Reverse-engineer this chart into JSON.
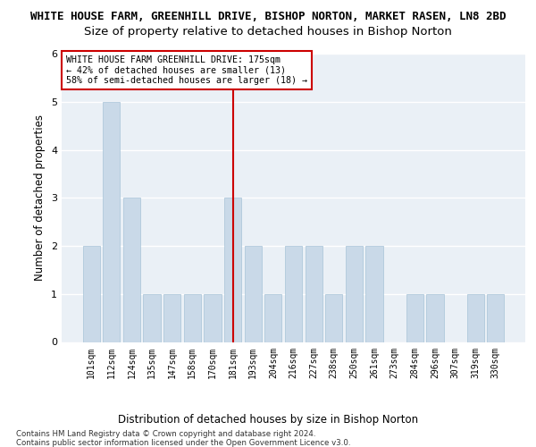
{
  "title": "WHITE HOUSE FARM, GREENHILL DRIVE, BISHOP NORTON, MARKET RASEN, LN8 2BD",
  "subtitle": "Size of property relative to detached houses in Bishop Norton",
  "xlabel": "Distribution of detached houses by size in Bishop Norton",
  "ylabel": "Number of detached properties",
  "footnote": "Contains HM Land Registry data © Crown copyright and database right 2024.\nContains public sector information licensed under the Open Government Licence v3.0.",
  "categories": [
    "101sqm",
    "112sqm",
    "124sqm",
    "135sqm",
    "147sqm",
    "158sqm",
    "170sqm",
    "181sqm",
    "193sqm",
    "204sqm",
    "216sqm",
    "227sqm",
    "238sqm",
    "250sqm",
    "261sqm",
    "273sqm",
    "284sqm",
    "296sqm",
    "307sqm",
    "319sqm",
    "330sqm"
  ],
  "values": [
    2,
    5,
    3,
    1,
    1,
    1,
    1,
    3,
    2,
    1,
    2,
    2,
    1,
    2,
    2,
    0,
    1,
    1,
    0,
    1,
    1
  ],
  "highlight_index": 7,
  "bar_color": "#c9d9e8",
  "bar_edge_color": "#a8c4d8",
  "highlight_line_color": "#cc0000",
  "annotation_box_edge_color": "#cc0000",
  "annotation_text": "WHITE HOUSE FARM GREENHILL DRIVE: 175sqm\n← 42% of detached houses are smaller (13)\n58% of semi-detached houses are larger (18) →",
  "ylim": [
    0,
    6
  ],
  "yticks": [
    0,
    1,
    2,
    3,
    4,
    5,
    6
  ],
  "background_color": "#eaf0f6",
  "grid_color": "#ffffff",
  "title_fontsize": 9.0,
  "subtitle_fontsize": 9.5,
  "axis_label_fontsize": 8.5,
  "ylabel_fontsize": 8.5,
  "tick_fontsize": 7.0,
  "annotation_fontsize": 7.2,
  "footnote_fontsize": 6.2
}
